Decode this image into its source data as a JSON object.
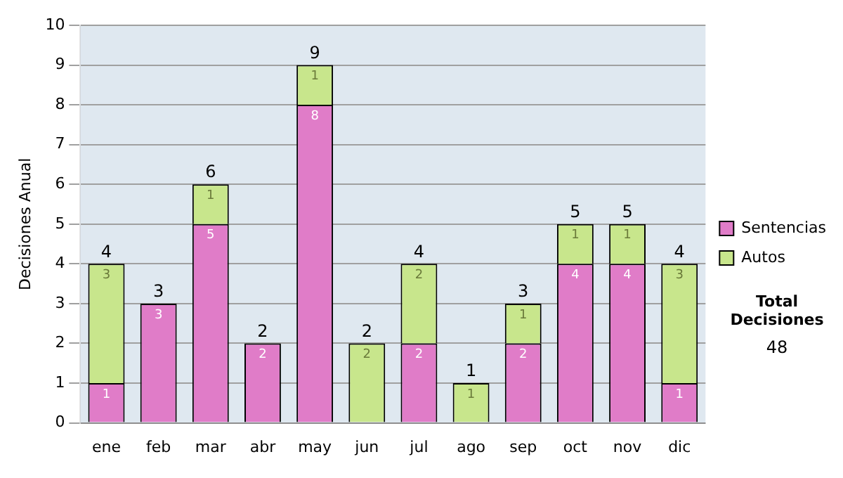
{
  "chart_data": {
    "type": "bar",
    "stacked": true,
    "ylabel": "Decisiones Anual",
    "categories": [
      "ene",
      "feb",
      "mar",
      "abr",
      "may",
      "jun",
      "jul",
      "ago",
      "sep",
      "oct",
      "nov",
      "dic"
    ],
    "series": [
      {
        "name": "Sentencias",
        "color": "#e07cc8",
        "values": [
          1,
          3,
          5,
          2,
          8,
          0,
          2,
          0,
          2,
          4,
          4,
          1
        ],
        "value_labels": [
          "1",
          "3",
          "5",
          "2",
          "8",
          null,
          "2",
          null,
          "2",
          "4",
          "4",
          "1"
        ]
      },
      {
        "name": "Autos",
        "color": "#c8e68c",
        "values": [
          3,
          0,
          1,
          0,
          1,
          2,
          2,
          1,
          1,
          1,
          1,
          3
        ],
        "value_labels": [
          "3",
          null,
          "1",
          null,
          "1",
          "2",
          "2",
          "1",
          "1",
          "1",
          "1",
          "3"
        ]
      }
    ],
    "totals": [
      "4",
      "3",
      "6",
      "2",
      "9",
      "2",
      "4",
      "1",
      "3",
      "5",
      "5",
      "4"
    ],
    "ylim": [
      0,
      10
    ],
    "yticks": [
      0,
      1,
      2,
      3,
      4,
      5,
      6,
      7,
      8,
      9,
      10
    ],
    "grid": "y",
    "legend": "right",
    "annotations": [
      "Total Decisiones",
      "48"
    ]
  }
}
